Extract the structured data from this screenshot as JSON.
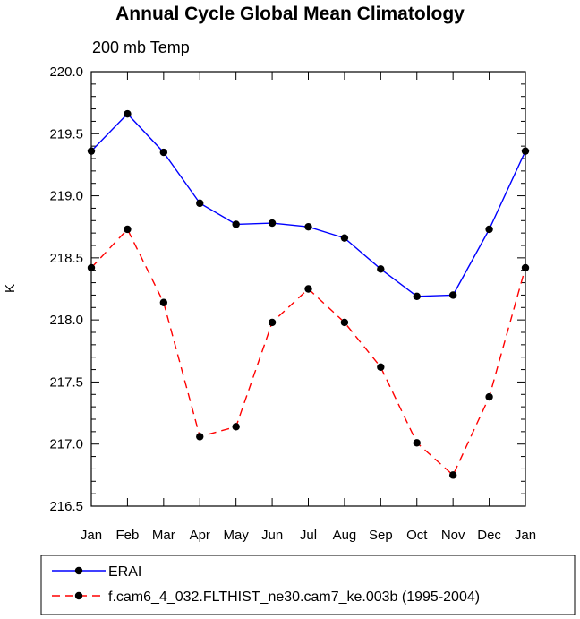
{
  "chart_data": {
    "type": "line",
    "title": "Annual Cycle Global Mean Climatology",
    "subtitle": "200 mb Temp",
    "xlabel": "",
    "ylabel": "K",
    "categories": [
      "Jan",
      "Feb",
      "Mar",
      "Apr",
      "May",
      "Jun",
      "Jul",
      "Aug",
      "Sep",
      "Oct",
      "Nov",
      "Dec",
      "Jan"
    ],
    "ylim": [
      216.5,
      220.0
    ],
    "yticks": [
      "216.5",
      "217.0",
      "217.5",
      "218.0",
      "218.5",
      "219.0",
      "219.5",
      "220.0"
    ],
    "series": [
      {
        "name": "ERAI",
        "color": "#0000ff",
        "dash": "solid",
        "values": [
          219.36,
          219.66,
          219.35,
          218.94,
          218.77,
          218.78,
          218.75,
          218.66,
          218.41,
          218.19,
          218.2,
          218.73,
          219.36
        ]
      },
      {
        "name": "f.cam6_4_032.FLTHIST_ne30.cam7_ke.003b (1995-2004)",
        "color": "#ff0000",
        "dash": "dashed",
        "values": [
          218.42,
          218.73,
          218.14,
          217.06,
          217.14,
          217.98,
          218.25,
          217.98,
          217.62,
          217.01,
          216.75,
          217.38,
          218.42
        ]
      }
    ]
  }
}
